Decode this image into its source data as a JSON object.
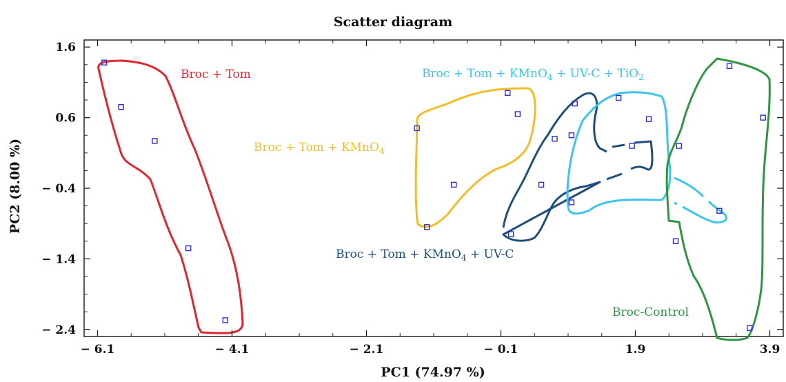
{
  "chart_data": {
    "type": "scatter",
    "title": "Scatter diagram",
    "xlabel": "PC1 (74.97 %)",
    "ylabel": "PC2 (8.00 %)",
    "xlim": [
      -6.3,
      4.1
    ],
    "ylim": [
      -2.5,
      1.7
    ],
    "x_ticks": [
      -6.1,
      -4.1,
      -2.1,
      -0.1,
      1.9,
      3.9
    ],
    "x_tick_labels": [
      "− 6.1",
      "− 4.1",
      "− 2.1",
      "− 0.1",
      "1.9",
      "3.9"
    ],
    "y_ticks": [
      1.6,
      0.6,
      -0.4,
      -1.4,
      -2.4
    ],
    "y_tick_labels": [
      "1.6",
      "0.6",
      "− 0.4",
      "− 1.4",
      "− 2.4"
    ],
    "marker": "open-square",
    "marker_color": "#2b2bd6",
    "groups": [
      {
        "name": "Broc + Tom",
        "label_text": "Broc + Tom",
        "color": "#e0262e",
        "points": [
          [
            -6.0,
            1.38
          ],
          [
            -5.75,
            0.75
          ],
          [
            -5.25,
            0.27
          ],
          [
            -4.75,
            -1.25
          ],
          [
            -4.2,
            -2.27
          ]
        ]
      },
      {
        "name": "Broc + Tom + KMnO₄",
        "label_text": "Broc + Tom + KMnO",
        "label_sub": "4",
        "color": "#f2bc2a",
        "points": [
          [
            -1.35,
            0.45
          ],
          [
            -0.8,
            -0.35
          ],
          [
            -1.2,
            -0.95
          ],
          [
            0.0,
            0.95
          ],
          [
            0.15,
            0.65
          ]
        ]
      },
      {
        "name": "Broc + Tom + KMnO₄ + UV-C",
        "label_text": "Broc + Tom + KMnO",
        "label_sub": "4",
        "label_tail": " + UV-C",
        "color": "#1e4f7c",
        "points": [
          [
            0.05,
            -1.05
          ],
          [
            0.5,
            -0.35
          ],
          [
            0.7,
            0.3
          ],
          [
            0.95,
            0.35
          ],
          [
            1.0,
            0.8
          ],
          [
            0.95,
            -0.6
          ]
        ]
      },
      {
        "name": "Broc + Tom + KMnO₄ + UV-C + TiO₂",
        "label_text": "Broc + Tom + KMnO",
        "label_sub": "4",
        "label_tail": " + UV-C + TiO",
        "label_sub2": "2",
        "color": "#3ec4ec",
        "points": [
          [
            1.65,
            0.88
          ],
          [
            1.85,
            0.2
          ],
          [
            2.1,
            0.58
          ],
          [
            3.15,
            -0.72
          ]
        ]
      },
      {
        "name": "Broc-Control",
        "label_text": "Broc-Control",
        "color": "#2e9641",
        "points": [
          [
            2.55,
            0.2
          ],
          [
            2.5,
            -1.15
          ],
          [
            3.3,
            1.33
          ],
          [
            3.8,
            0.6
          ],
          [
            3.6,
            -2.38
          ]
        ]
      }
    ],
    "grid": false
  }
}
